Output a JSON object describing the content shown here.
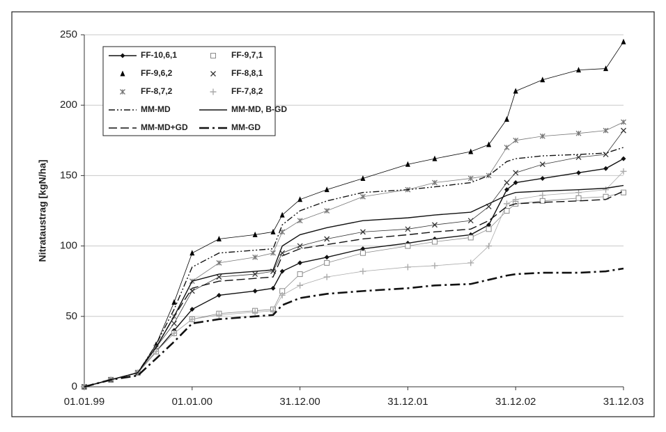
{
  "chart_data": {
    "type": "line",
    "y_label": "Nitrataustrag [kgN/ha]",
    "x": [
      "01.01.99",
      "01.04.99",
      "01.07.99",
      "01.09.99",
      "01.11.99",
      "01.01.00",
      "01.04.00",
      "01.08.00",
      "01.10.00",
      "01.11.00",
      "31.12.00",
      "01.04.01",
      "01.08.01",
      "31.12.01",
      "01.04.02",
      "01.08.02",
      "01.10.02",
      "01.12.02",
      "31.12.02",
      "01.04.03",
      "01.08.03",
      "01.11.03",
      "31.12.03"
    ],
    "xlim": [
      "01.01.99",
      "31.12.03"
    ],
    "xticks": [
      "01.01.99",
      "01.01.00",
      "31.12.00",
      "31.12.01",
      "31.12.02",
      "31.12.03"
    ],
    "ylim": [
      0,
      250
    ],
    "yticks": [
      0,
      50,
      100,
      150,
      200,
      250
    ],
    "grid": true,
    "series": [
      {
        "name": "FF-10,6,1",
        "color": "#111111",
        "style": "solid",
        "marker": "diamond",
        "values": [
          0,
          5,
          10,
          25,
          40,
          55,
          65,
          68,
          70,
          82,
          88,
          92,
          98,
          102,
          105,
          108,
          115,
          140,
          145,
          148,
          152,
          155,
          162
        ]
      },
      {
        "name": "FF-9,7,1",
        "color": "#888888",
        "style": "none",
        "marker": "square",
        "values": [
          0,
          5,
          10,
          25,
          38,
          48,
          52,
          54,
          55,
          68,
          80,
          88,
          95,
          100,
          103,
          106,
          112,
          125,
          130,
          132,
          134,
          135,
          138
        ]
      },
      {
        "name": "FF-9,6,2",
        "color": "#000000",
        "style": "none",
        "marker": "triangle",
        "values": [
          0,
          5,
          10,
          30,
          60,
          95,
          105,
          108,
          110,
          122,
          133,
          140,
          148,
          158,
          162,
          167,
          172,
          190,
          210,
          218,
          225,
          226,
          245
        ]
      },
      {
        "name": "FF-8,8,1",
        "color": "#333333",
        "style": "none",
        "marker": "x",
        "values": [
          0,
          5,
          10,
          28,
          45,
          68,
          78,
          80,
          82,
          95,
          100,
          105,
          110,
          112,
          115,
          118,
          128,
          145,
          152,
          158,
          163,
          165,
          182
        ]
      },
      {
        "name": "FF-8,7,2",
        "color": "#777777",
        "style": "none",
        "marker": "star",
        "values": [
          0,
          5,
          10,
          28,
          50,
          75,
          88,
          92,
          95,
          110,
          118,
          125,
          135,
          140,
          145,
          148,
          150,
          170,
          175,
          178,
          180,
          182,
          188
        ]
      },
      {
        "name": "FF-7,8,2",
        "color": "#aaaaaa",
        "style": "none",
        "marker": "plus",
        "values": [
          0,
          5,
          10,
          25,
          38,
          48,
          51,
          53,
          54,
          65,
          72,
          78,
          82,
          85,
          86,
          88,
          100,
          130,
          133,
          136,
          138,
          140,
          153
        ]
      },
      {
        "name": "MM-MD",
        "color": "#111111",
        "style": "dash-dot-dot",
        "marker": null,
        "values": [
          0,
          5,
          10,
          30,
          55,
          85,
          95,
          97,
          98,
          115,
          125,
          132,
          138,
          140,
          142,
          145,
          150,
          160,
          162,
          164,
          165,
          166,
          170
        ]
      },
      {
        "name": "MM-MD, B-GD",
        "color": "#111111",
        "style": "solid",
        "marker": null,
        "values": [
          0,
          5,
          10,
          28,
          50,
          75,
          80,
          82,
          83,
          100,
          108,
          113,
          118,
          120,
          122,
          124,
          130,
          136,
          138,
          139,
          140,
          141,
          143
        ]
      },
      {
        "name": "MM-MD+GD",
        "color": "#111111",
        "style": "dash",
        "marker": null,
        "values": [
          0,
          5,
          10,
          28,
          50,
          70,
          75,
          77,
          78,
          93,
          98,
          101,
          105,
          108,
          110,
          112,
          118,
          128,
          130,
          131,
          132,
          133,
          139
        ]
      },
      {
        "name": "MM-GD",
        "color": "#111111",
        "style": "heavy-dash-dot",
        "marker": null,
        "values": [
          0,
          5,
          8,
          20,
          32,
          45,
          48,
          50,
          51,
          58,
          63,
          66,
          68,
          70,
          72,
          73,
          76,
          79,
          80,
          81,
          81,
          82,
          84
        ]
      }
    ]
  }
}
